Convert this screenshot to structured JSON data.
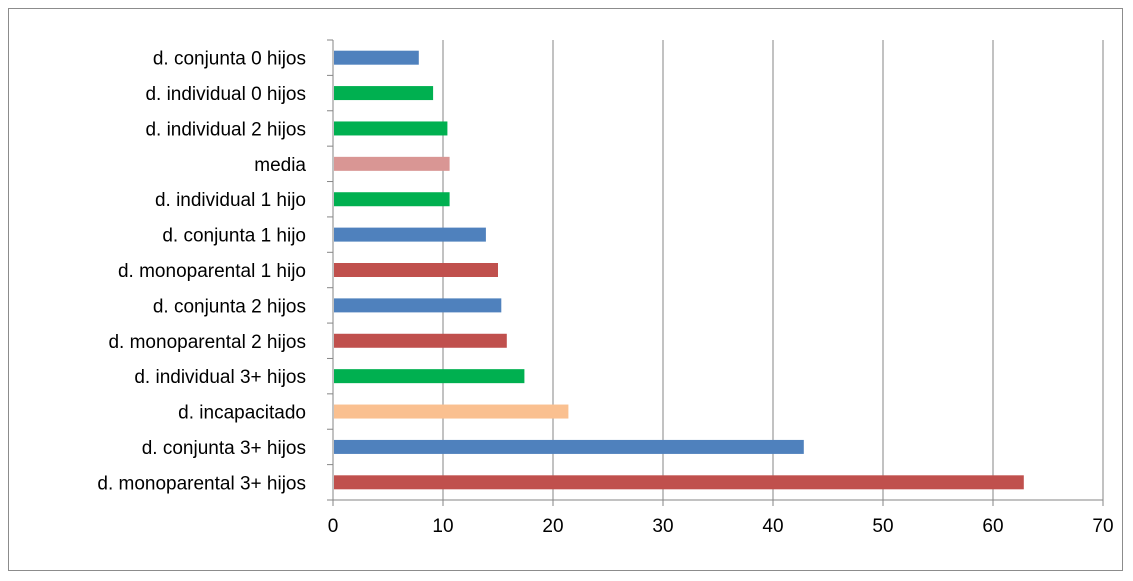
{
  "chart_data": {
    "type": "bar",
    "orientation": "horizontal",
    "title": "",
    "xlabel": "",
    "ylabel": "",
    "xlim": [
      0,
      70
    ],
    "x_ticks": [
      "0",
      "10",
      "20",
      "30",
      "40",
      "50",
      "60",
      "70"
    ],
    "grid": "vertical major gridlines",
    "legend": "none",
    "categories": [
      "d. conjunta 0 hijos",
      "d. individual 0 hijos",
      "d. individual 2 hijos",
      "media",
      "d. individual 1 hijo",
      "d. conjunta 1 hijo",
      "d. monoparental 1 hijo",
      "d. conjunta 2 hijos",
      "d. monoparental 2 hijos",
      "d. individual 3+ hijos",
      "d. incapacitado",
      "d. conjunta 3+ hijos",
      "d. monoparental 3+ hijos"
    ],
    "values": [
      7.8,
      9.1,
      10.4,
      10.6,
      10.6,
      13.9,
      15.0,
      15.3,
      15.8,
      17.4,
      21.4,
      42.8,
      62.8
    ],
    "colors": [
      "#4f81bd",
      "#00b050",
      "#00b050",
      "#d99694",
      "#00b050",
      "#4f81bd",
      "#c0504d",
      "#4f81bd",
      "#c0504d",
      "#00b050",
      "#fac090",
      "#4f81bd",
      "#c0504d"
    ]
  }
}
